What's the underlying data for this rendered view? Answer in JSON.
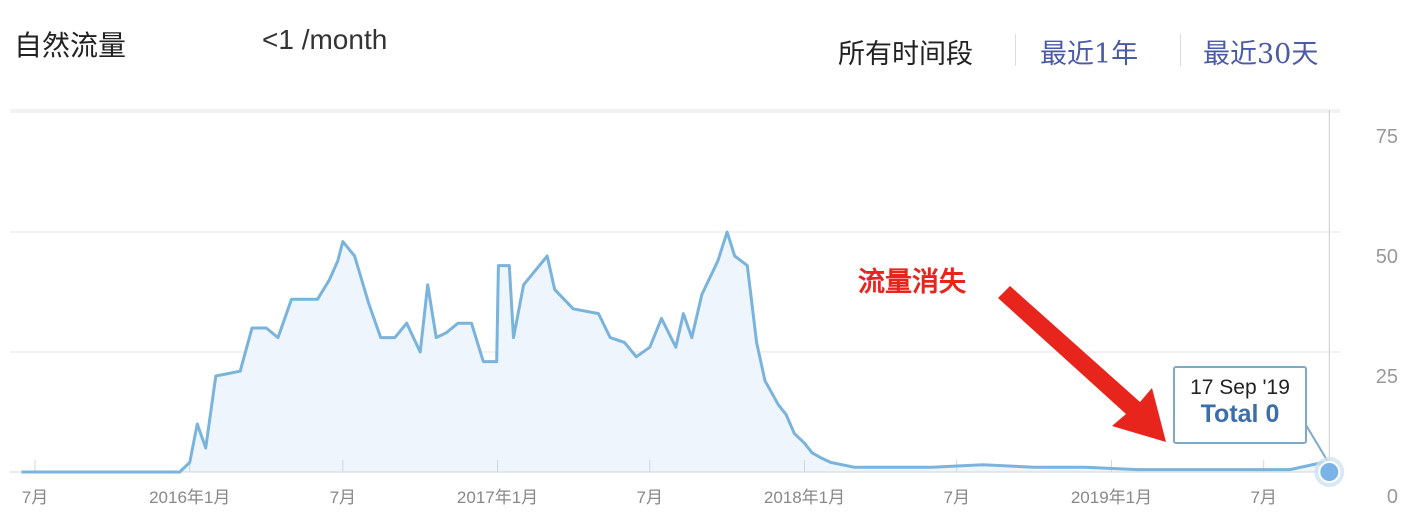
{
  "header": {
    "title": "自然流量",
    "value": "<1 /month"
  },
  "ranges": [
    {
      "label": "所有时间段",
      "active": true
    },
    {
      "label": "最近1年",
      "active": false
    },
    {
      "label": "最近30天",
      "active": false
    }
  ],
  "tooltip": {
    "date": "17 Sep '19",
    "total": "Total 0"
  },
  "annotation": "流量消失",
  "colors": {
    "line": "#7ab3dc",
    "fill": "#eef5fc",
    "annotation": "#e8251c",
    "link": "#4a5aa8"
  },
  "chart_data": {
    "type": "area",
    "ylim": [
      0,
      75
    ],
    "yticks": [
      0,
      25,
      50,
      75
    ],
    "xticks": [
      {
        "date": "2015-07-01",
        "label": "7月"
      },
      {
        "date": "2016-01-01",
        "label": "2016年1月"
      },
      {
        "date": "2016-07-01",
        "label": "7月"
      },
      {
        "date": "2017-01-01",
        "label": "2017年1月"
      },
      {
        "date": "2017-07-01",
        "label": "7月"
      },
      {
        "date": "2018-01-01",
        "label": "2018年1月"
      },
      {
        "date": "2018-07-01",
        "label": "7月"
      },
      {
        "date": "2019-01-01",
        "label": "2019年1月"
      },
      {
        "date": "2019-07-01",
        "label": "7月"
      }
    ],
    "grid": true,
    "points": [
      [
        "2015-06-15",
        0
      ],
      [
        "2015-12-20",
        0
      ],
      [
        "2016-01-01",
        2
      ],
      [
        "2016-01-10",
        10
      ],
      [
        "2016-01-20",
        5
      ],
      [
        "2016-02-01",
        20
      ],
      [
        "2016-03-01",
        21
      ],
      [
        "2016-03-15",
        30
      ],
      [
        "2016-04-01",
        30
      ],
      [
        "2016-04-15",
        28
      ],
      [
        "2016-05-01",
        36
      ],
      [
        "2016-06-01",
        36
      ],
      [
        "2016-06-15",
        40
      ],
      [
        "2016-06-25",
        44
      ],
      [
        "2016-07-01",
        48
      ],
      [
        "2016-07-15",
        45
      ],
      [
        "2016-08-01",
        35
      ],
      [
        "2016-08-15",
        28
      ],
      [
        "2016-09-01",
        28
      ],
      [
        "2016-09-15",
        31
      ],
      [
        "2016-10-01",
        25
      ],
      [
        "2016-10-10",
        39
      ],
      [
        "2016-10-20",
        28
      ],
      [
        "2016-11-01",
        29
      ],
      [
        "2016-11-15",
        31
      ],
      [
        "2016-12-01",
        31
      ],
      [
        "2016-12-15",
        23
      ],
      [
        "2016-12-31",
        23
      ],
      [
        "2017-01-02",
        43
      ],
      [
        "2017-01-15",
        43
      ],
      [
        "2017-01-20",
        28
      ],
      [
        "2017-02-01",
        39
      ],
      [
        "2017-02-15",
        42
      ],
      [
        "2017-03-01",
        45
      ],
      [
        "2017-03-10",
        38
      ],
      [
        "2017-04-01",
        34
      ],
      [
        "2017-05-01",
        33
      ],
      [
        "2017-05-15",
        28
      ],
      [
        "2017-06-01",
        27
      ],
      [
        "2017-06-15",
        24
      ],
      [
        "2017-07-01",
        26
      ],
      [
        "2017-07-15",
        32
      ],
      [
        "2017-08-01",
        26
      ],
      [
        "2017-08-10",
        33
      ],
      [
        "2017-08-20",
        28
      ],
      [
        "2017-09-01",
        37
      ],
      [
        "2017-09-20",
        44
      ],
      [
        "2017-10-01",
        50
      ],
      [
        "2017-10-10",
        45
      ],
      [
        "2017-10-25",
        43
      ],
      [
        "2017-11-05",
        27
      ],
      [
        "2017-11-15",
        19
      ],
      [
        "2017-12-01",
        14
      ],
      [
        "2017-12-10",
        12
      ],
      [
        "2017-12-20",
        8
      ],
      [
        "2018-01-01",
        6
      ],
      [
        "2018-01-10",
        4
      ],
      [
        "2018-01-20",
        3
      ],
      [
        "2018-02-01",
        2
      ],
      [
        "2018-03-01",
        1
      ],
      [
        "2018-06-01",
        1
      ],
      [
        "2018-08-01",
        1.5
      ],
      [
        "2018-10-01",
        1
      ],
      [
        "2018-12-01",
        1
      ],
      [
        "2019-02-01",
        0.5
      ],
      [
        "2019-08-01",
        0.5
      ],
      [
        "2019-09-10",
        2
      ],
      [
        "2019-09-17",
        0
      ]
    ]
  }
}
